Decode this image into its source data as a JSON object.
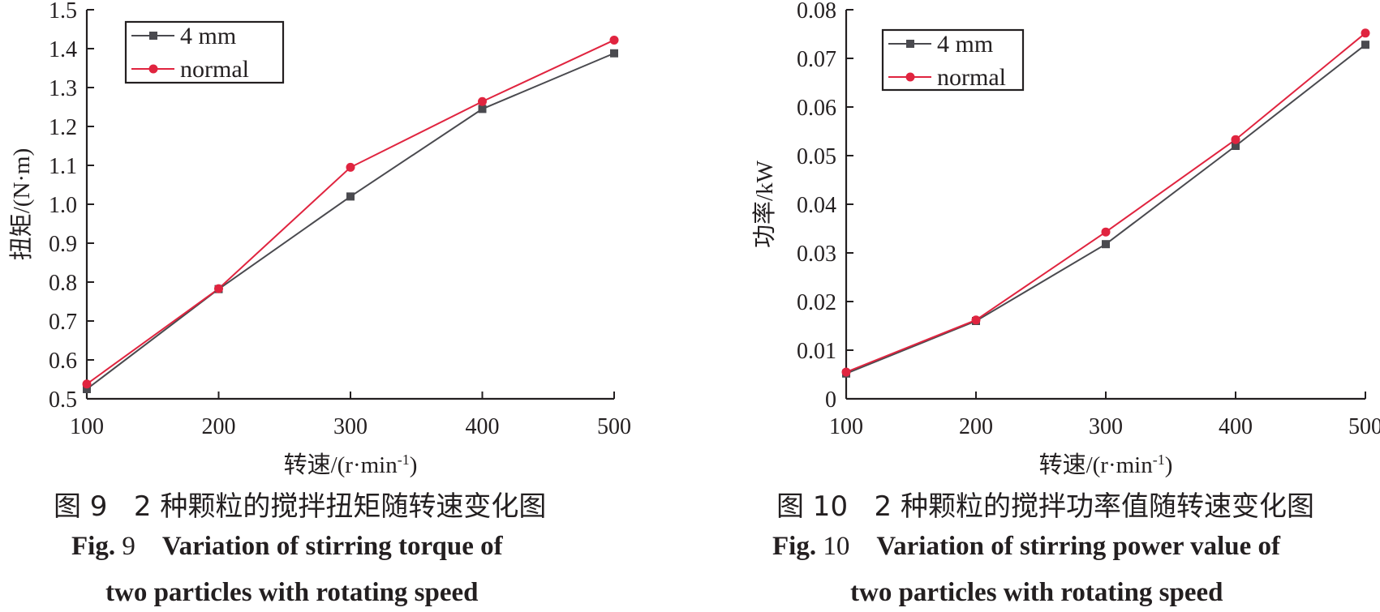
{
  "chart_data": [
    {
      "type": "line",
      "x": [
        100,
        200,
        300,
        400,
        500
      ],
      "xlim": [
        100,
        500
      ],
      "ylim": [
        0.5,
        1.5
      ],
      "yticks": [
        "0.5",
        "0.6",
        "0.7",
        "0.8",
        "0.9",
        "1.0",
        "1.1",
        "1.2",
        "1.3",
        "1.4",
        "1.5"
      ],
      "xticks": [
        "100",
        "200",
        "300",
        "400",
        "500"
      ],
      "xlabel": "转速/(r·min",
      "xlabel_sup": "-1",
      "xlabel_tail": ")",
      "ylabel": "扭矩/(N·m)",
      "legend_position": "top-left",
      "series": [
        {
          "name": "4 mm",
          "color": "#4a4a4f",
          "marker": "square",
          "values": [
            0.525,
            0.782,
            1.02,
            1.245,
            1.388
          ]
        },
        {
          "name": "normal",
          "color": "#e0243f",
          "marker": "circle",
          "values": [
            0.538,
            0.783,
            1.095,
            1.264,
            1.422
          ]
        }
      ],
      "caption_cn_num": "图 9",
      "caption_cn": "2 种颗粒的搅拌扭矩随转速变化图",
      "caption_en_label": "Fig.",
      "caption_en_num": "9",
      "caption_en_line1": "Variation of stirring torque of",
      "caption_en_line2": "two particles with rotating speed"
    },
    {
      "type": "line",
      "x": [
        100,
        200,
        300,
        400,
        500
      ],
      "xlim": [
        100,
        500
      ],
      "ylim": [
        0,
        0.08
      ],
      "yticks": [
        "0",
        "0.01",
        "0.02",
        "0.03",
        "0.04",
        "0.05",
        "0.06",
        "0.07",
        "0.08"
      ],
      "xticks": [
        "100",
        "200",
        "300",
        "400",
        "500"
      ],
      "xlabel": "转速/(r·min",
      "xlabel_sup": "-1",
      "xlabel_tail": ")",
      "ylabel": "功率/kW",
      "legend_position": "top-left",
      "series": [
        {
          "name": "4 mm",
          "color": "#4a4a4f",
          "marker": "square",
          "values": [
            0.0052,
            0.016,
            0.0318,
            0.052,
            0.0728
          ]
        },
        {
          "name": "normal",
          "color": "#e0243f",
          "marker": "circle",
          "values": [
            0.0055,
            0.0162,
            0.0343,
            0.0533,
            0.0752
          ]
        }
      ],
      "caption_cn_num": "图 10",
      "caption_cn": "2 种颗粒的搅拌功率值随转速变化图",
      "caption_en_label": "Fig.",
      "caption_en_num": "10",
      "caption_en_line1": "Variation of stirring power value of",
      "caption_en_line2": "two particles with rotating speed"
    }
  ]
}
